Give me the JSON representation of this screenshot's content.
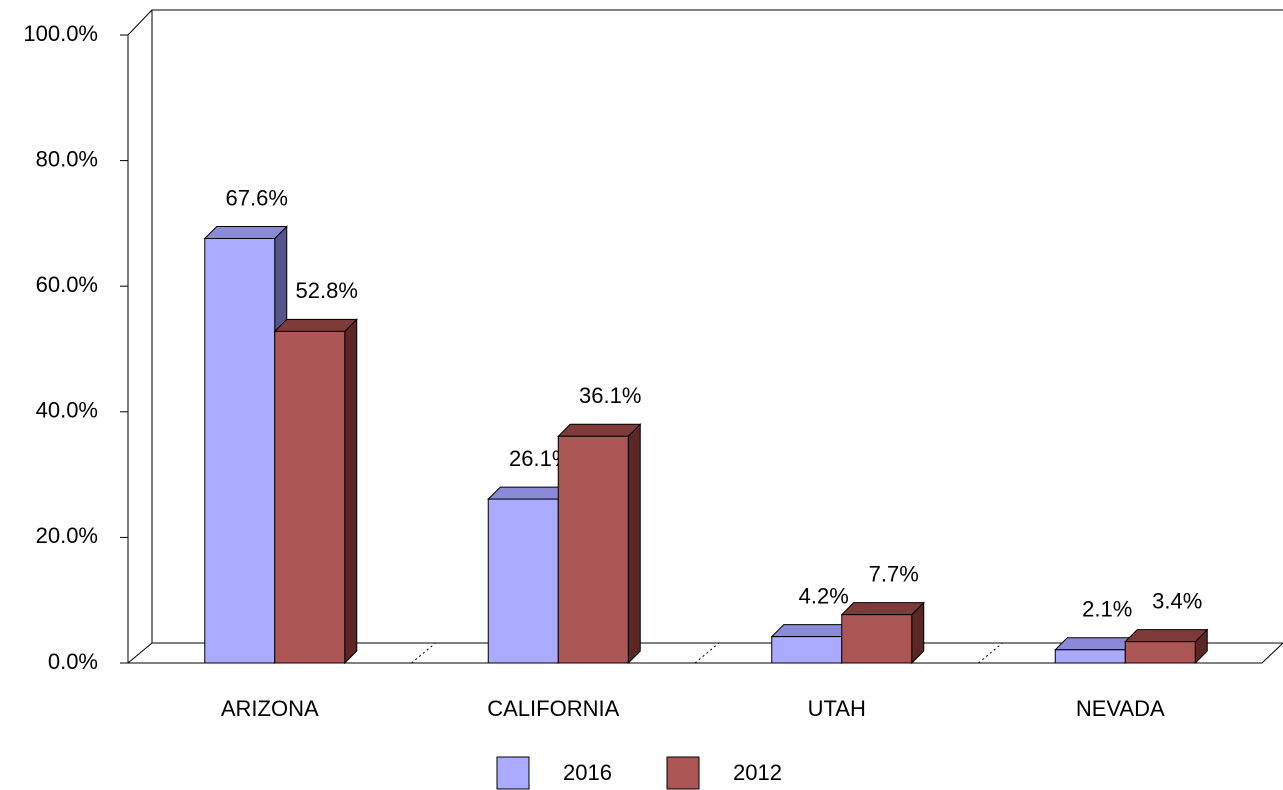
{
  "chart_data": {
    "type": "bar3d",
    "categories": [
      "ARIZONA",
      "CALIFORNIA",
      "UTAH",
      "NEVADA"
    ],
    "series": [
      {
        "name": "2016",
        "color": "#aaaaff",
        "top": "#8a8ad8",
        "side": "#55558a",
        "values": [
          67.6,
          26.1,
          4.2,
          2.1
        ],
        "value_labels": [
          "67.6%",
          "26.1%",
          "4.2%",
          "2.1%"
        ]
      },
      {
        "name": "2012",
        "color": "#ab5555",
        "top": "#7f3a3a",
        "side": "#5a2626",
        "values": [
          52.8,
          36.1,
          7.7,
          3.4
        ],
        "value_labels": [
          "52.8%",
          "36.1%",
          "7.7%",
          "3.4%"
        ]
      }
    ],
    "ylim": [
      0,
      100
    ],
    "yticks": [
      {
        "value": 0,
        "label": "0.0%"
      },
      {
        "value": 20,
        "label": "20.0%"
      },
      {
        "value": 40,
        "label": "40.0%"
      },
      {
        "value": 60,
        "label": "60.0%"
      },
      {
        "value": 80,
        "label": "80.0%"
      },
      {
        "value": 100,
        "label": "100.0%"
      }
    ]
  }
}
